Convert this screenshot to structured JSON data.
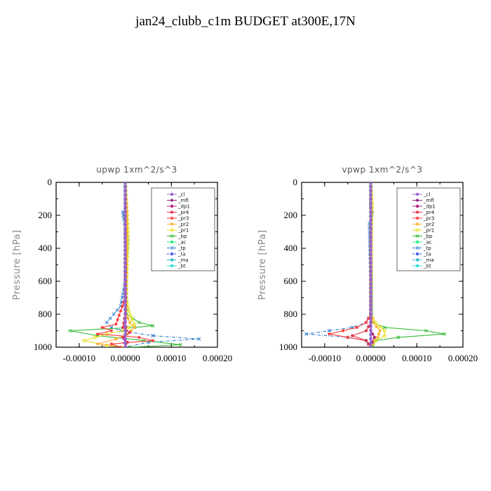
{
  "title": "jan24_clubb_c1m  BUDGET at300E,17N",
  "colors": {
    "_cl": "#9966cc",
    "_mfl": "#8a1c7c",
    "_dp1": "#b0247a",
    "_pr4": "#e0304a",
    "_pr3": "#ff3b3b",
    "_pr2": "#ffb030",
    "_pr1": "#e8e020",
    "_bp": "#33bb33",
    "_ac": "#33ee88",
    "_tp": "#2277cc",
    "_ta": "#3344ee",
    "_ma": "#22bbcc",
    "_bt": "#33dddd"
  },
  "chart_data": [
    {
      "type": "line",
      "title": "upwp   1xm^2/s^3",
      "ylabel": "Pressure [hPa]",
      "xlim": [
        -0.00015,
        0.0002
      ],
      "ylim": [
        1000,
        0
      ],
      "xticks": [
        "-0.00010",
        "0.00000",
        "0.00010",
        "0.00020"
      ],
      "xtick_values": [
        -0.0001,
        0,
        0.0001,
        0.0002
      ],
      "yticks": [
        "0",
        "200",
        "400",
        "600",
        "800",
        "1000"
      ],
      "ytick_values": [
        0,
        200,
        400,
        600,
        800,
        1000
      ],
      "legend": [
        "_cl",
        "_mfl",
        "_dp1",
        "_pr4",
        "_pr3",
        "_pr2",
        "_pr1",
        "_bp",
        "_ac",
        "_tp",
        "_ta",
        "_ma",
        "_bt"
      ],
      "legend_position": "top-right",
      "series": [
        {
          "name": "_tp",
          "p": [
            0,
            150,
            180,
            220,
            280,
            400,
            600,
            750,
            800,
            850,
            880,
            900,
            930,
            950,
            970,
            1000
          ],
          "x": [
            0,
            0,
            -5e-06,
            -3e-06,
            0,
            0,
            0,
            -1e-05,
            -2.5e-05,
            -4e-05,
            -3e-05,
            -1e-05,
            6e-05,
            0.00016,
            5e-05,
            0
          ]
        },
        {
          "name": "_bp",
          "p": [
            0,
            300,
            350,
            400,
            450,
            600,
            800,
            850,
            870,
            880,
            900,
            930,
            960,
            985,
            1000
          ],
          "x": [
            0,
            4e-06,
            6e-06,
            5e-06,
            3e-06,
            2e-06,
            3e-06,
            3e-05,
            6e-05,
            2e-05,
            -0.00012,
            -6e-05,
            4e-05,
            0.00012,
            1e-05
          ]
        },
        {
          "name": "_pr1",
          "p": [
            0,
            200,
            300,
            700,
            780,
            830,
            860,
            900,
            920,
            960,
            990,
            1000
          ],
          "x": [
            0,
            4e-06,
            6e-06,
            2e-06,
            8e-06,
            1.5e-05,
            2e-05,
            -5e-06,
            -4e-05,
            -9e-05,
            -4e-05,
            0
          ]
        },
        {
          "name": "_pr2",
          "p": [
            0,
            200,
            600,
            800,
            850,
            880,
            920,
            950,
            980,
            1000
          ],
          "x": [
            0,
            4e-06,
            2e-06,
            2e-06,
            1e-05,
            2e-05,
            5e-06,
            -2e-05,
            -6e-05,
            0
          ]
        },
        {
          "name": "_pr3",
          "p": [
            0,
            700,
            860,
            880,
            900,
            920,
            940,
            960,
            980,
            1000
          ],
          "x": [
            0,
            0,
            -2e-05,
            -5e-05,
            -3e-05,
            -6e-05,
            3e-05,
            6e-05,
            -3e-05,
            -1e-05
          ]
        },
        {
          "name": "_pr4",
          "p": [
            0,
            800,
            880,
            910,
            940,
            970,
            1000
          ],
          "x": [
            0,
            0,
            -5e-06,
            1e-05,
            -5e-06,
            5e-06,
            0
          ]
        },
        {
          "name": "_ma",
          "p": [
            0,
            1000
          ],
          "x": [
            0,
            0
          ]
        },
        {
          "name": "_ta",
          "p": [
            0,
            1000
          ],
          "x": [
            0,
            0
          ]
        },
        {
          "name": "_dp1",
          "p": [
            0,
            850,
            900,
            950,
            1000
          ],
          "x": [
            0,
            0,
            2e-06,
            -2e-06,
            0
          ]
        },
        {
          "name": "_mfl",
          "p": [
            0,
            1000
          ],
          "x": [
            0,
            0
          ]
        },
        {
          "name": "_cl",
          "p": [
            0,
            1000
          ],
          "x": [
            0,
            0
          ]
        }
      ]
    },
    {
      "type": "line",
      "title": "vpwp   1xm^2/s^3",
      "ylabel": "Pressure [hPa]",
      "xlim": [
        -0.00015,
        0.0002
      ],
      "ylim": [
        1000,
        0
      ],
      "xticks": [
        "-0.00010",
        "0.00000",
        "0.00010",
        "0.00020"
      ],
      "xtick_values": [
        -0.0001,
        0,
        0.0001,
        0.0002
      ],
      "yticks": [
        "0",
        "200",
        "400",
        "600",
        "800",
        "1000"
      ],
      "ytick_values": [
        0,
        200,
        400,
        600,
        800,
        1000
      ],
      "legend": [
        "_cl",
        "_mfl",
        "_dp1",
        "_pr4",
        "_pr3",
        "_pr2",
        "_pr1",
        "_bp",
        "_ac",
        "_tp",
        "_ta",
        "_ma",
        "_bt"
      ],
      "legend_position": "top-right",
      "series": [
        {
          "name": "_tp",
          "p": [
            0,
            150,
            180,
            220,
            250,
            600,
            800,
            850,
            880,
            900,
            920,
            940,
            960,
            1000
          ],
          "x": [
            0,
            0,
            3e-06,
            0,
            -3e-06,
            0,
            0,
            -1e-05,
            -4e-05,
            -9e-05,
            -0.00014,
            -5e-05,
            -1e-05,
            0
          ]
        },
        {
          "name": "_bp",
          "p": [
            0,
            800,
            850,
            880,
            900,
            920,
            940,
            960,
            990,
            1000
          ],
          "x": [
            0,
            2e-06,
            4e-06,
            3e-05,
            0.00012,
            0.00016,
            6e-05,
            1e-05,
            5e-06,
            0
          ]
        },
        {
          "name": "_pr1",
          "p": [
            0,
            150,
            200,
            800,
            850,
            900,
            930,
            960,
            1000
          ],
          "x": [
            0,
            4e-06,
            2e-06,
            0,
            1e-05,
            3e-05,
            3e-05,
            1e-05,
            0
          ]
        },
        {
          "name": "_pr2",
          "p": [
            0,
            800,
            850,
            900,
            940,
            970,
            1000
          ],
          "x": [
            0,
            0,
            5e-06,
            2e-05,
            1.5e-05,
            5e-06,
            0
          ]
        },
        {
          "name": "_pr3",
          "p": [
            0,
            800,
            850,
            880,
            900,
            920,
            940,
            960,
            980,
            1000
          ],
          "x": [
            0,
            0,
            -1e-05,
            -3e-05,
            -6e-05,
            -9e-05,
            -5e-05,
            -1e-05,
            -5e-06,
            0
          ]
        },
        {
          "name": "_pr4",
          "p": [
            0,
            850,
            900,
            930,
            960,
            1000
          ],
          "x": [
            0,
            0,
            -1e-05,
            -4e-05,
            -1e-05,
            0
          ]
        },
        {
          "name": "_ma",
          "p": [
            0,
            1000
          ],
          "x": [
            0,
            0
          ]
        },
        {
          "name": "_ta",
          "p": [
            0,
            1000
          ],
          "x": [
            0,
            0
          ]
        },
        {
          "name": "_dp1",
          "p": [
            0,
            900,
            940,
            970,
            1000
          ],
          "x": [
            0,
            0,
            8e-06,
            3e-06,
            0
          ]
        },
        {
          "name": "_mfl",
          "p": [
            0,
            1000
          ],
          "x": [
            0,
            0
          ]
        },
        {
          "name": "_cl",
          "p": [
            0,
            1000
          ],
          "x": [
            0,
            0
          ]
        }
      ]
    }
  ]
}
